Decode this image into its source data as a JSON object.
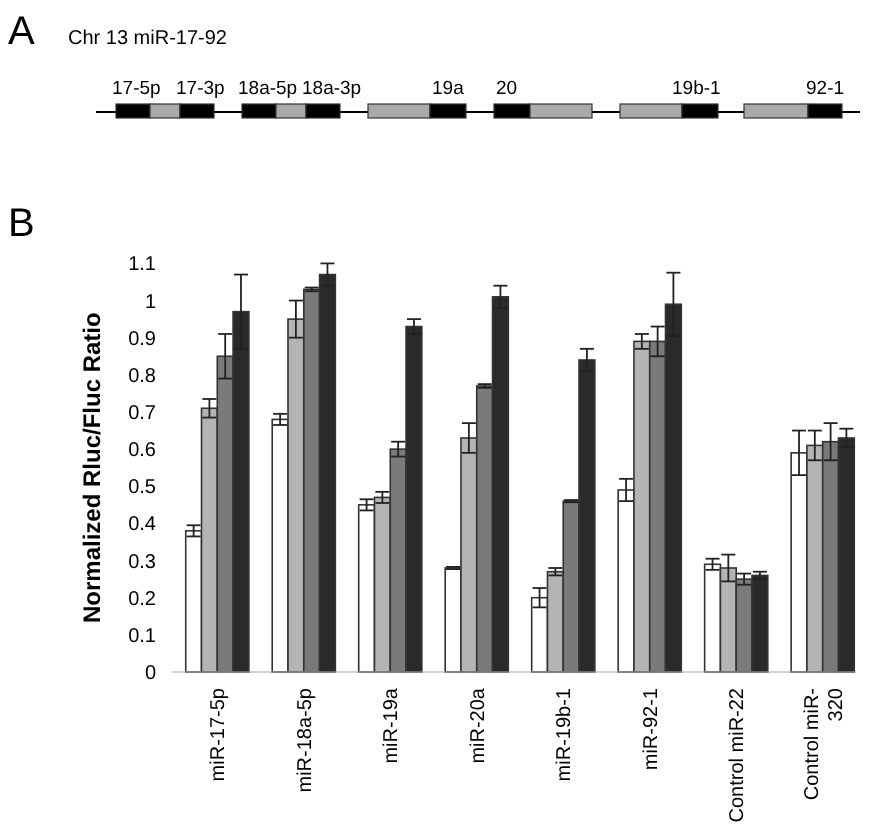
{
  "chart_data": {
    "type": "bar",
    "ylabel": "Normalized Rluc/Fluc Ratio",
    "annotations": [
      "A",
      "Chr 13 miR-17-92",
      "B",
      "17-5p",
      "17-3p",
      "18a-5p",
      "18a-3p",
      "19a",
      "20",
      "19b-1",
      "92-1"
    ],
    "categories": [
      "miR-17-5p",
      "miR-18a-5p",
      "miR-19a",
      "miR-20a",
      "miR-19b-1",
      "miR-92-1",
      "Control miR-22",
      "Control miR-320"
    ],
    "series": [
      {
        "color": "#ffffff",
        "values": [
          0.38,
          0.68,
          0.45,
          0.28,
          0.2,
          0.49,
          0.29,
          0.59
        ],
        "errors": [
          0.015,
          0.015,
          0.015,
          0.003,
          0.026,
          0.03,
          0.015,
          0.06
        ]
      },
      {
        "color": "#b4b4b4",
        "values": [
          0.71,
          0.95,
          0.47,
          0.63,
          0.27,
          0.89,
          0.28,
          0.61
        ],
        "errors": [
          0.025,
          0.05,
          0.015,
          0.04,
          0.01,
          0.02,
          0.036,
          0.04
        ]
      },
      {
        "color": "#7a7a7a",
        "values": [
          0.85,
          1.03,
          0.6,
          0.77,
          0.46,
          0.89,
          0.25,
          0.62
        ],
        "errors": [
          0.06,
          0.005,
          0.02,
          0.005,
          0.003,
          0.04,
          0.015,
          0.05
        ]
      },
      {
        "color": "#2a2a2a",
        "values": [
          0.97,
          1.07,
          0.93,
          1.01,
          0.84,
          0.99,
          0.26,
          0.63
        ],
        "errors": [
          0.1,
          0.03,
          0.02,
          0.03,
          0.03,
          0.085,
          0.01,
          0.025
        ]
      }
    ],
    "ylim": [
      0,
      1.1
    ],
    "yticks": [
      0,
      0.1,
      0.2,
      0.3,
      0.4,
      0.5,
      0.6,
      0.7,
      0.8,
      0.9,
      1,
      1.1
    ]
  }
}
